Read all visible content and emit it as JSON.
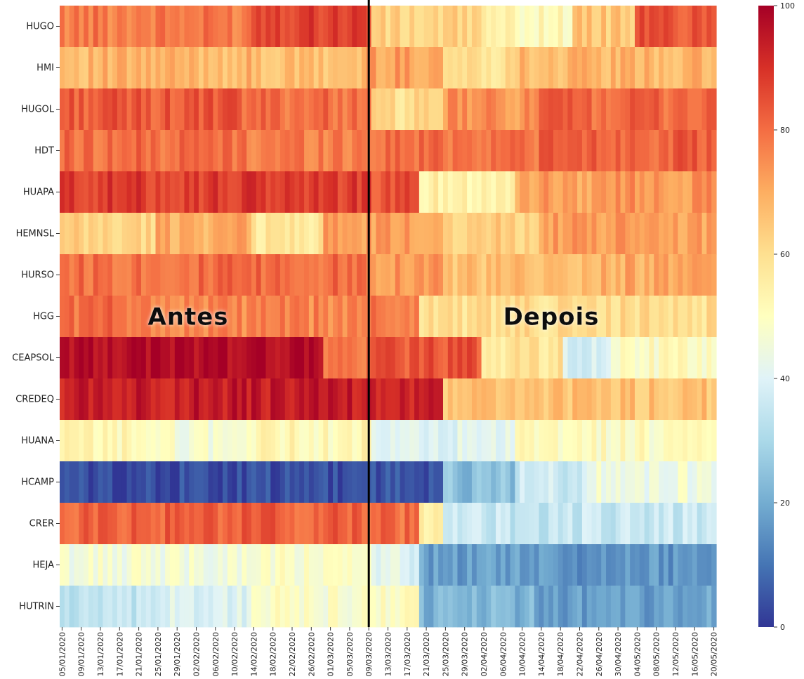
{
  "chart_data": {
    "type": "heatmap",
    "title": "",
    "xlabel": "",
    "ylabel": "",
    "rows": [
      "HUGO",
      "HMI",
      "HUGOL",
      "HDT",
      "HUAPA",
      "HEMNSL",
      "HURSO",
      "HGG",
      "CEAPSOL",
      "CREDEQ",
      "HUANA",
      "HCAMP",
      "CRER",
      "HEJA",
      "HUTRIN"
    ],
    "x_start_date": "2020-01-05",
    "x_end_date": "2020-05-20",
    "x_tick_labels": [
      "05/01/2020",
      "09/01/2020",
      "13/01/2020",
      "17/01/2020",
      "21/01/2020",
      "25/01/2020",
      "29/01/2020",
      "02/02/2020",
      "06/02/2020",
      "10/02/2020",
      "14/02/2020",
      "18/02/2020",
      "22/02/2020",
      "26/02/2020",
      "01/03/2020",
      "05/03/2020",
      "09/03/2020",
      "13/03/2020",
      "17/03/2020",
      "21/03/2020",
      "25/03/2020",
      "29/03/2020",
      "02/04/2020",
      "06/04/2020",
      "10/04/2020",
      "14/04/2020",
      "18/04/2020",
      "22/04/2020",
      "26/04/2020",
      "30/04/2020",
      "04/05/2020",
      "08/05/2020",
      "12/05/2020",
      "16/05/2020",
      "20/05/2020"
    ],
    "divider_date": "09/03/2020",
    "before_label": "Antes",
    "after_label": "Depois",
    "colorbar": {
      "min": 0,
      "max": 100,
      "ticks": [
        0,
        20,
        40,
        60,
        80,
        100
      ],
      "colormap": "RdYlBu_r"
    },
    "row_segments": [
      [
        [
          0,
          40,
          78
        ],
        [
          40,
          65,
          88
        ],
        [
          65,
          89,
          62
        ],
        [
          89,
          107,
          52
        ],
        [
          107,
          120,
          65
        ],
        [
          120,
          137,
          84
        ]
      ],
      [
        [
          0,
          40,
          68
        ],
        [
          40,
          63,
          66
        ],
        [
          63,
          80,
          72
        ],
        [
          80,
          95,
          60
        ],
        [
          95,
          137,
          68
        ]
      ],
      [
        [
          0,
          38,
          83
        ],
        [
          38,
          65,
          80
        ],
        [
          65,
          80,
          60
        ],
        [
          80,
          100,
          74
        ],
        [
          100,
          137,
          81
        ]
      ],
      [
        [
          0,
          38,
          80
        ],
        [
          38,
          65,
          78
        ],
        [
          65,
          100,
          80
        ],
        [
          100,
          137,
          82
        ]
      ],
      [
        [
          0,
          65,
          88
        ],
        [
          65,
          75,
          84
        ],
        [
          75,
          95,
          55
        ],
        [
          95,
          115,
          72
        ],
        [
          115,
          137,
          74
        ]
      ],
      [
        [
          0,
          20,
          62
        ],
        [
          20,
          40,
          70
        ],
        [
          40,
          55,
          58
        ],
        [
          55,
          65,
          72
        ],
        [
          65,
          80,
          72
        ],
        [
          80,
          100,
          64
        ],
        [
          100,
          137,
          72
        ]
      ],
      [
        [
          0,
          65,
          80
        ],
        [
          65,
          80,
          74
        ],
        [
          80,
          110,
          66
        ],
        [
          110,
          137,
          70
        ]
      ],
      [
        [
          0,
          18,
          80
        ],
        [
          18,
          65,
          76
        ],
        [
          65,
          75,
          78
        ],
        [
          75,
          137,
          60
        ]
      ],
      [
        [
          0,
          55,
          98
        ],
        [
          55,
          65,
          78
        ],
        [
          65,
          88,
          84
        ],
        [
          88,
          105,
          58
        ],
        [
          105,
          115,
          38
        ],
        [
          115,
          137,
          50
        ]
      ],
      [
        [
          0,
          65,
          94
        ],
        [
          65,
          80,
          92
        ],
        [
          80,
          137,
          66
        ]
      ],
      [
        [
          0,
          20,
          52
        ],
        [
          20,
          40,
          47
        ],
        [
          40,
          65,
          52
        ],
        [
          65,
          95,
          40
        ],
        [
          95,
          137,
          50
        ]
      ],
      [
        [
          0,
          65,
          3
        ],
        [
          65,
          80,
          5
        ],
        [
          80,
          95,
          24
        ],
        [
          95,
          110,
          36
        ],
        [
          110,
          137,
          45
        ]
      ],
      [
        [
          0,
          65,
          82
        ],
        [
          65,
          75,
          80
        ],
        [
          75,
          80,
          55
        ],
        [
          80,
          137,
          35
        ]
      ],
      [
        [
          0,
          40,
          46
        ],
        [
          40,
          65,
          48
        ],
        [
          65,
          75,
          40
        ],
        [
          75,
          100,
          18
        ],
        [
          100,
          137,
          16
        ]
      ],
      [
        [
          0,
          20,
          33
        ],
        [
          20,
          40,
          40
        ],
        [
          40,
          65,
          48
        ],
        [
          65,
          75,
          50
        ],
        [
          75,
          100,
          22
        ],
        [
          100,
          137,
          18
        ]
      ]
    ]
  }
}
